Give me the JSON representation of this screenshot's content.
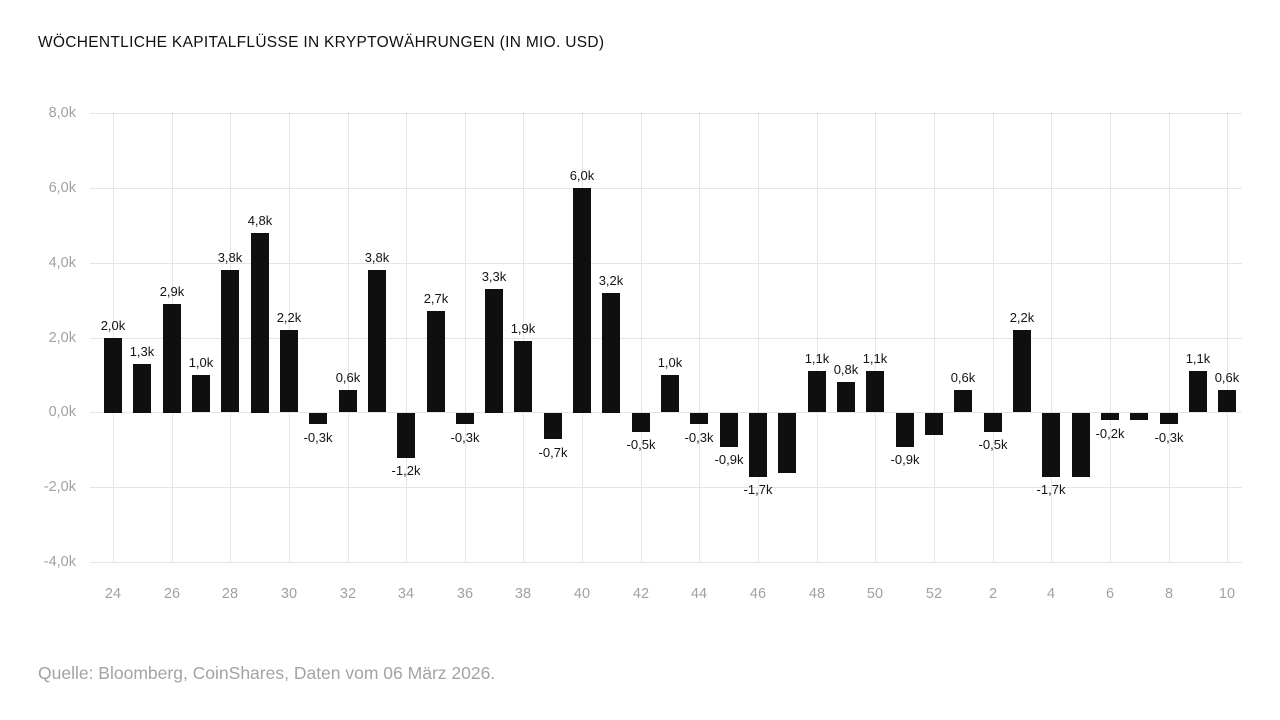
{
  "title": "WÖCHENTLICHE KAPITALFLÜSSE IN KRYPTOWÄHRUNGEN (IN MIO. USD)",
  "source": "Quelle: Bloomberg, CoinShares, Daten vom 06 März 2026.",
  "colors": {
    "background": "#ffffff",
    "bar": "#0f0f0f",
    "grid": "#e5e5e5",
    "axis_tick_text": "#a2a2a2",
    "bar_label_text": "#141414",
    "title_text": "#111111",
    "source_text": "#a3a3a3"
  },
  "chart_data": {
    "type": "bar",
    "title": "WÖCHENTLICHE KAPITALFLÜSSE IN KRYPTOWÄHRUNGEN (IN MIO. USD)",
    "xlabel": "",
    "ylabel": "",
    "unit": "Mio. USD",
    "grid": true,
    "legend": false,
    "ylim": [
      -4.0,
      8.0
    ],
    "categories_weeks": [
      24,
      25,
      26,
      27,
      28,
      29,
      30,
      31,
      32,
      33,
      34,
      35,
      36,
      37,
      38,
      39,
      40,
      41,
      42,
      43,
      44,
      45,
      46,
      47,
      48,
      49,
      50,
      51,
      52,
      1,
      2,
      3,
      4,
      5,
      6,
      7,
      8,
      9,
      10
    ],
    "values": [
      2.0,
      1.3,
      2.9,
      1.0,
      3.8,
      4.8,
      2.2,
      -0.3,
      0.6,
      3.8,
      -1.2,
      2.7,
      -0.3,
      3.3,
      1.9,
      -0.7,
      6.0,
      3.2,
      -0.5,
      1.0,
      -0.3,
      -0.9,
      -1.7,
      -1.6,
      1.1,
      0.8,
      1.1,
      -0.9,
      -0.6,
      0.6,
      -0.5,
      2.2,
      -1.7,
      -1.7,
      -0.2,
      -0.2,
      -0.3,
      1.1,
      0.6
    ],
    "bar_labels": [
      "2,0k",
      "1,3k",
      "2,9k",
      "1,0k",
      "3,8k",
      "4,8k",
      "2,2k",
      "-0,3k",
      "0,6k",
      "3,8k",
      "-1,2k",
      "2,7k",
      "-0,3k",
      "3,3k",
      "1,9k",
      "-0,7k",
      "6,0k",
      "3,2k",
      "-0,5k",
      "1,0k",
      "-0,3k",
      "-0,9k",
      "-1,7k",
      null,
      "1,1k",
      "0,8k",
      "1,1k",
      "-0,9k",
      null,
      "0,6k",
      "-0,5k",
      "2,2k",
      "-1,7k",
      null,
      "-0,2k",
      null,
      "-0,3k",
      "1,1k",
      "0,6k"
    ],
    "x_tick_labels": [
      "24",
      "26",
      "28",
      "30",
      "32",
      "34",
      "36",
      "38",
      "40",
      "42",
      "44",
      "46",
      "48",
      "50",
      "52",
      "2",
      "4",
      "6",
      "8",
      "10"
    ],
    "y_tick_values": [
      8,
      6,
      4,
      2,
      0,
      -2,
      -4
    ],
    "y_tick_labels": [
      "8,0k",
      "6,0k",
      "4,0k",
      "2,0k",
      "0,0k",
      "-2,0k",
      "-4,0k"
    ]
  }
}
